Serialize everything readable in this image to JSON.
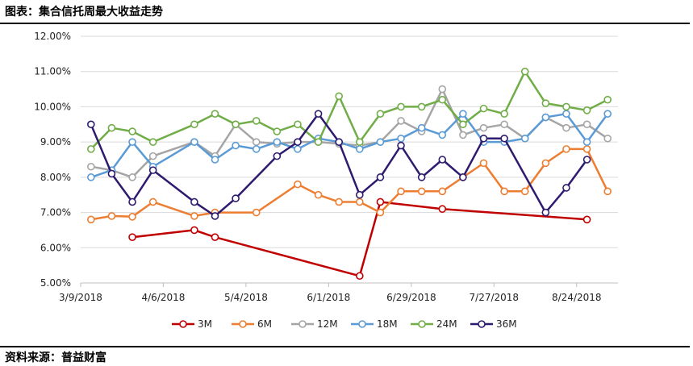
{
  "header": {
    "title": "图表：集合信托周最大收益走势"
  },
  "footer": {
    "source": "资料来源：普益财富"
  },
  "chart_data": {
    "type": "line",
    "title": "",
    "xlabel": "",
    "ylabel": "",
    "ylim": [
      5.0,
      12.0
    ],
    "yticks": [
      "5.00%",
      "6.00%",
      "7.00%",
      "8.00%",
      "9.00%",
      "10.00%",
      "11.00%",
      "12.00%"
    ],
    "x_tick_labels": [
      "3/9/2018",
      "4/6/2018",
      "5/4/2018",
      "6/1/2018",
      "6/29/2018",
      "7/27/2018",
      "8/24/2018"
    ],
    "grid": "horizontal",
    "legend_position": "bottom",
    "x_index": [
      "3/9",
      "3/16",
      "3/23",
      "3/30",
      "4/6",
      "4/13",
      "4/20",
      "4/27",
      "5/4",
      "5/11",
      "5/18",
      "5/25",
      "6/1",
      "6/8",
      "6/15",
      "6/22",
      "6/29",
      "7/6",
      "7/13",
      "7/20",
      "7/27",
      "8/3",
      "8/10",
      "8/17",
      "8/24",
      "8/31"
    ],
    "series": [
      {
        "name": "3M",
        "color": "#c00000",
        "values": [
          null,
          null,
          6.3,
          null,
          null,
          6.5,
          6.3,
          null,
          null,
          null,
          null,
          null,
          null,
          5.2,
          7.3,
          null,
          null,
          7.1,
          null,
          null,
          null,
          null,
          null,
          null,
          6.8,
          null
        ]
      },
      {
        "name": "6M",
        "color": "#ed7d31",
        "values": [
          6.8,
          6.9,
          6.88,
          7.3,
          null,
          6.9,
          7.0,
          null,
          7.0,
          null,
          7.8,
          7.5,
          7.3,
          7.3,
          7.0,
          7.6,
          7.6,
          7.6,
          8.0,
          8.4,
          7.6,
          7.6,
          8.4,
          8.8,
          8.8,
          7.6
        ]
      },
      {
        "name": "12M",
        "color": "#a5a5a5",
        "values": [
          8.3,
          8.2,
          8.0,
          8.6,
          null,
          9.0,
          8.6,
          9.5,
          9.0,
          8.95,
          9.0,
          9.0,
          8.95,
          8.9,
          9.0,
          9.6,
          9.3,
          10.5,
          9.2,
          9.4,
          9.5,
          9.1,
          9.7,
          9.4,
          9.5,
          9.1
        ]
      },
      {
        "name": "18M",
        "color": "#5b9bd5",
        "values": [
          8.0,
          8.2,
          9.0,
          8.3,
          null,
          9.0,
          8.5,
          8.9,
          8.8,
          9.0,
          8.8,
          9.1,
          9.0,
          8.8,
          9.0,
          9.1,
          9.4,
          9.2,
          9.8,
          9.0,
          9.0,
          9.1,
          9.7,
          9.8,
          9.0,
          9.8
        ]
      },
      {
        "name": "24M",
        "color": "#70ad47",
        "values": [
          8.8,
          9.4,
          9.3,
          9.0,
          null,
          9.5,
          9.8,
          9.5,
          9.6,
          9.3,
          9.5,
          9.0,
          10.3,
          9.0,
          9.8,
          10.0,
          10.0,
          10.2,
          9.5,
          9.95,
          9.8,
          11.0,
          10.1,
          10.0,
          9.9,
          10.2
        ]
      },
      {
        "name": "36M",
        "color": "#2e1a6e",
        "values": [
          9.5,
          8.1,
          7.3,
          8.2,
          null,
          7.3,
          6.9,
          7.4,
          null,
          8.6,
          9.0,
          9.8,
          9.0,
          7.5,
          8.0,
          8.9,
          8.0,
          8.5,
          8.0,
          9.1,
          9.1,
          null,
          7.0,
          7.7,
          8.5,
          null
        ]
      }
    ]
  }
}
